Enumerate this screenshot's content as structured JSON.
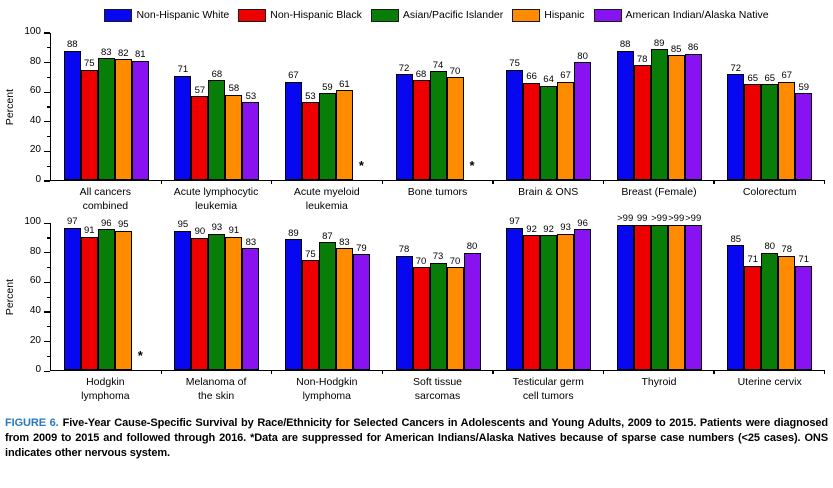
{
  "legend": {
    "items": [
      {
        "label": "Non-Hispanic White",
        "color": "#0808F0"
      },
      {
        "label": "Non-Hispanic Black",
        "color": "#EE0000"
      },
      {
        "label": "Asian/Pacific Islander",
        "color": "#087D08"
      },
      {
        "label": "Hispanic",
        "color": "#FF8C00"
      },
      {
        "label": "American Indian/Alaska Native",
        "color": "#8812F0"
      }
    ]
  },
  "caption": {
    "label": "FIGURE 6.",
    "text": "Five-Year Cause-Specific Survival by Race/Ethnicity for Selected Cancers in Adolescents and Young Adults, 2009 to 2015. Patients were diagnosed from 2009 to 2015 and followed through 2016. *Data are suppressed for American Indians/Alaska Natives because of sparse case numbers (<25 cases). ONS indicates other nervous system."
  },
  "chart_data": [
    {
      "type": "bar",
      "title": "",
      "xlabel": "",
      "ylabel": "Percent",
      "ylim": [
        0,
        100
      ],
      "yticks": [
        0,
        20,
        40,
        60,
        80,
        100
      ],
      "grid": false,
      "legend_position": "top",
      "suppressed_marker": "*",
      "categories": [
        "All cancers\ncombined",
        "Acute lymphocytic\nleukemia",
        "Acute myeloid\nleukemia",
        "Bone tumors",
        "Brain & ONS",
        "Breast (Female)",
        "Colorectum"
      ],
      "series": [
        {
          "name": "Non-Hispanic White",
          "key": "non-hispanic-white",
          "color": "#0808F0",
          "values": [
            88,
            71,
            67,
            72,
            75,
            88,
            72
          ]
        },
        {
          "name": "Non-Hispanic Black",
          "key": "non-hispanic-black",
          "color": "#EE0000",
          "values": [
            75,
            57,
            53,
            68,
            66,
            78,
            65
          ]
        },
        {
          "name": "Asian/Pacific Islander",
          "key": "asian-pacific-islander",
          "color": "#087D08",
          "values": [
            83,
            68,
            59,
            74,
            64,
            89,
            65
          ]
        },
        {
          "name": "Hispanic",
          "key": "hispanic",
          "color": "#FF8C00",
          "values": [
            82,
            58,
            61,
            70,
            67,
            85,
            67
          ]
        },
        {
          "name": "American Indian/Alaska Native",
          "key": "american-indian-alaska-native",
          "color": "#8812F0",
          "values": [
            81,
            53,
            "*",
            "*",
            80,
            86,
            59
          ]
        }
      ]
    },
    {
      "type": "bar",
      "title": "",
      "xlabel": "",
      "ylabel": "Percent",
      "ylim": [
        0,
        100
      ],
      "yticks": [
        0,
        20,
        40,
        60,
        80,
        100
      ],
      "grid": false,
      "legend_position": "top",
      "suppressed_marker": "*",
      "categories": [
        "Hodgkin\nlymphoma",
        "Melanoma of\nthe skin",
        "Non-Hodgkin\nlymphoma",
        "Soft tissue\nsarcomas",
        "Testicular germ\ncell tumors",
        "Thyroid",
        "Uterine cervix"
      ],
      "series": [
        {
          "name": "Non-Hispanic White",
          "key": "non-hispanic-white",
          "color": "#0808F0",
          "values": [
            97,
            95,
            89,
            78,
            97,
            ">99",
            85
          ]
        },
        {
          "name": "Non-Hispanic Black",
          "key": "non-hispanic-black",
          "color": "#EE0000",
          "values": [
            91,
            90,
            75,
            70,
            92,
            99,
            71
          ]
        },
        {
          "name": "Asian/Pacific Islander",
          "key": "asian-pacific-islander",
          "color": "#087D08",
          "values": [
            96,
            93,
            87,
            73,
            92,
            ">99",
            80
          ]
        },
        {
          "name": "Hispanic",
          "key": "hispanic",
          "color": "#FF8C00",
          "values": [
            95,
            91,
            83,
            70,
            93,
            ">99",
            78
          ]
        },
        {
          "name": "American Indian/Alaska Native",
          "key": "american-indian-alaska-native",
          "color": "#8812F0",
          "values": [
            "*",
            83,
            79,
            80,
            96,
            ">99",
            71
          ]
        }
      ]
    }
  ]
}
